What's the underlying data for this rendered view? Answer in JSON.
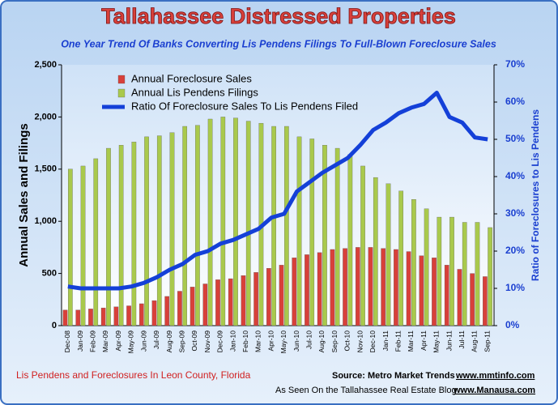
{
  "chart_data": {
    "type": "bar",
    "title": "Tallahassee Distressed Properties",
    "subtitle": "One Year Trend Of Banks Converting Lis Pendens Filings To Full-Blown  Foreclosure Sales",
    "y_label": "Annual Sales and Filings",
    "y2_label": "Ratio of Foreclosures to Lis Pendens",
    "footer_left": "Lis Pendens and Foreclosures In Leon County, Florida",
    "source": "Source: Metro Market Trends",
    "source_url": "www.mmtinfo.com",
    "blog": "As Seen On the Tallahassee Real Estate Blog",
    "blog_url": "www.Manausa.com",
    "categories": [
      "Dec-08",
      "Jan-09",
      "Feb-09",
      "Mar-09",
      "Apr-09",
      "May-09",
      "Jun-09",
      "Jul-09",
      "Aug-09",
      "Sep-09",
      "Oct-09",
      "Nov-09",
      "Dec-09",
      "Jan-10",
      "Feb-10",
      "Mar-10",
      "Apr-10",
      "May-10",
      "Jun-10",
      "Jul-10",
      "Aug-10",
      "Sep-10",
      "Oct-10",
      "Nov-10",
      "Dec-10",
      "Jan-11",
      "Feb-11",
      "Mar-11",
      "Apr-11",
      "May-11",
      "Jun-11",
      "Jul-11",
      "Aug-11",
      "Sep-11"
    ],
    "series": [
      {
        "name": "Annual Foreclosure Sales",
        "color": "#d8403a",
        "values": [
          150,
          150,
          160,
          170,
          180,
          190,
          210,
          240,
          280,
          330,
          370,
          400,
          440,
          450,
          480,
          510,
          550,
          580,
          650,
          680,
          700,
          730,
          740,
          750,
          750,
          740,
          730,
          710,
          670,
          650,
          580,
          540,
          500,
          470
        ]
      },
      {
        "name": "Annual Lis Pendens Filings",
        "color": "#a9c94c",
        "values": [
          1500,
          1530,
          1600,
          1700,
          1730,
          1760,
          1810,
          1820,
          1850,
          1910,
          1920,
          1980,
          2000,
          1990,
          1960,
          1940,
          1910,
          1910,
          1810,
          1790,
          1730,
          1700,
          1640,
          1530,
          1420,
          1360,
          1290,
          1210,
          1120,
          1040,
          1040,
          990,
          990,
          940
        ]
      },
      {
        "name": "Ratio Of Foreclosure Sales To Lis Pendens Filed",
        "color": "#1440d8",
        "axis": "y2",
        "type": "line",
        "values": [
          10.5,
          10,
          10,
          10,
          10,
          10.5,
          11.5,
          13,
          15,
          16.5,
          19,
          20,
          22,
          23,
          24.5,
          26,
          29,
          30,
          36,
          38.5,
          41,
          43,
          45,
          48.5,
          52.5,
          54.5,
          57,
          58.5,
          59.5,
          62.5,
          56,
          54.5,
          50.5,
          50
        ]
      }
    ],
    "ylim": [
      0,
      2500
    ],
    "yticks": [
      0,
      500,
      {
        "value": 1000,
        "label": "1,000"
      },
      {
        "value": 1500,
        "label": "1,500"
      },
      {
        "value": 2000,
        "label": "2,000"
      },
      {
        "value": 2500,
        "label": "2,500"
      }
    ],
    "y2lim": [
      0,
      70
    ],
    "y2ticks": [
      {
        "value": 0,
        "label": "0%"
      },
      {
        "value": 10,
        "label": "10%"
      },
      {
        "value": 20,
        "label": "20%"
      },
      {
        "value": 30,
        "label": "30%"
      },
      {
        "value": 40,
        "label": "40%"
      },
      {
        "value": 50,
        "label": "50%"
      },
      {
        "value": 60,
        "label": "60%"
      },
      {
        "value": 70,
        "label": "70%"
      }
    ],
    "legend": "top-left"
  }
}
